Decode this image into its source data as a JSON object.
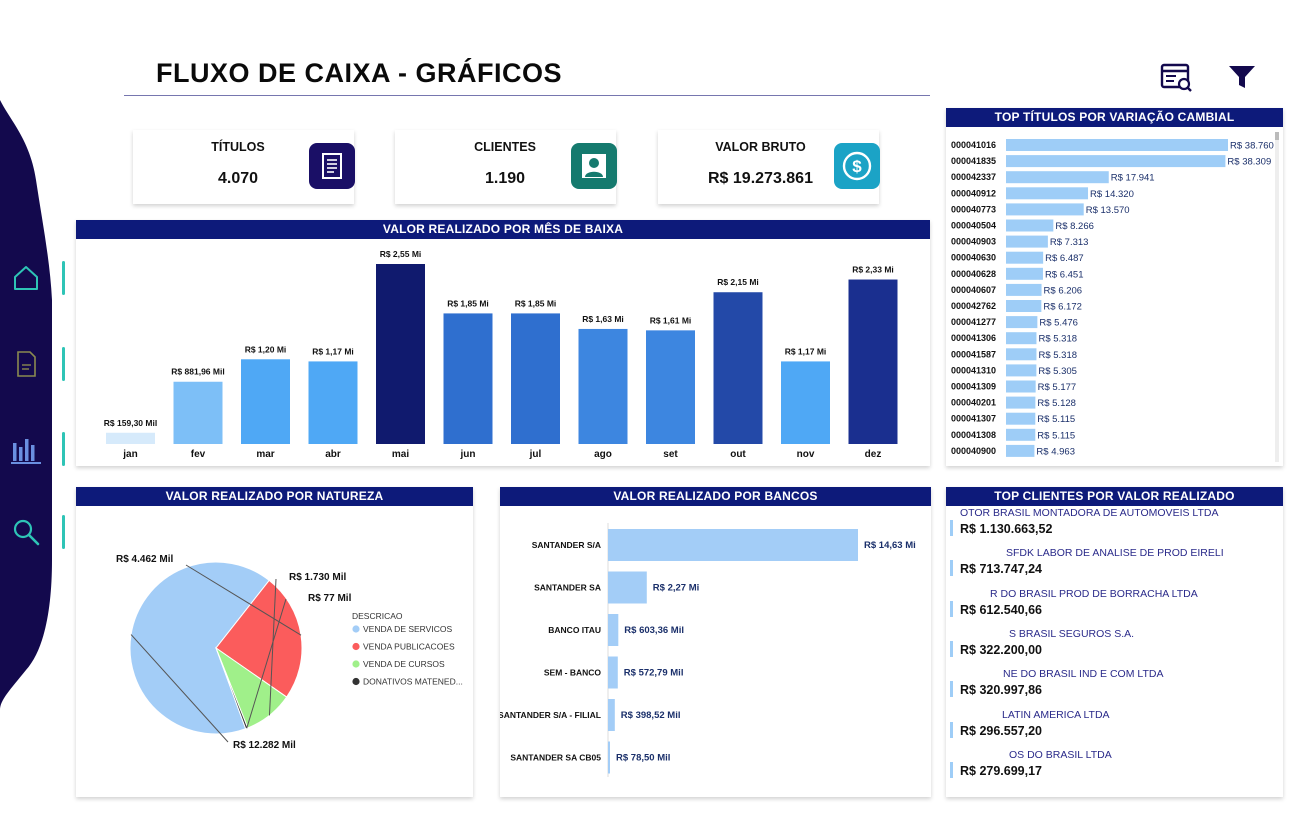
{
  "header": {
    "title": "FLUXO DE CAIXA - GRÁFICOS"
  },
  "kpis": [
    {
      "label": "TÍTULOS",
      "value": "4.070",
      "icon": "document-icon",
      "color": "#1a0f66"
    },
    {
      "label": "CLIENTES",
      "value": "1.190",
      "icon": "user-icon",
      "color": "#157a6e"
    },
    {
      "label": "VALOR BRUTO",
      "value": "R$ 19.273.861",
      "icon": "dollar-icon",
      "color": "#1ba3c6"
    }
  ],
  "colors": {
    "header_bg": "#0d1a7a",
    "sidebar_bg": "#13094d",
    "accent": "#2ec4b6"
  },
  "chart_data": [
    {
      "id": "monthly",
      "type": "bar",
      "title": "VALOR REALIZADO POR MÊS DE BAIXA",
      "categories": [
        "jan",
        "fev",
        "mar",
        "abr",
        "mai",
        "jun",
        "jul",
        "ago",
        "set",
        "out",
        "nov",
        "dez"
      ],
      "values": [
        159.3,
        881.96,
        1200,
        1170,
        2550,
        1850,
        1850,
        1630,
        1610,
        2150,
        1170,
        2330
      ],
      "labels": [
        "R$ 159,30 Mil",
        "R$ 881,96 Mil",
        "R$ 1,20 Mi",
        "R$ 1,17 Mi",
        "R$ 2,55 Mi",
        "R$ 1,85 Mi",
        "R$ 1,85 Mi",
        "R$ 1,63 Mi",
        "R$ 1,61 Mi",
        "R$ 2,15 Mi",
        "R$ 1,17 Mi",
        "R$ 2,33 Mi"
      ],
      "colors": [
        "#d6eafb",
        "#7dbff7",
        "#4fa8f5",
        "#4fa8f5",
        "#101a6e",
        "#2f6fcf",
        "#2f6fcf",
        "#3d86e0",
        "#3d86e0",
        "#2349a8",
        "#4fa8f5",
        "#1a2f8f"
      ],
      "unit": "Mil",
      "ylim": [
        0,
        2550
      ]
    },
    {
      "id": "top_titulos",
      "type": "bar",
      "orientation": "horizontal",
      "title": "TOP TÍTULOS POR VARIAÇÃO CAMBIAL",
      "categories": [
        "000041016",
        "000041835",
        "000042337",
        "000040912",
        "000040773",
        "000040504",
        "000040903",
        "000040630",
        "000040628",
        "000040607",
        "000042762",
        "000041277",
        "000041306",
        "000041587",
        "000041310",
        "000041309",
        "000040201",
        "000041307",
        "000041308",
        "000040900"
      ],
      "values": [
        38760,
        38309,
        17941,
        14320,
        13570,
        8266,
        7313,
        6487,
        6451,
        6206,
        6172,
        5476,
        5318,
        5318,
        5305,
        5177,
        5128,
        5115,
        5115,
        4963
      ],
      "labels": [
        "R$ 38.760",
        "R$ 38.309",
        "R$ 17.941",
        "R$ 14.320",
        "R$ 13.570",
        "R$ 8.266",
        "R$ 7.313",
        "R$ 6.487",
        "R$ 6.451",
        "R$ 6.206",
        "R$ 6.172",
        "R$ 5.476",
        "R$ 5.318",
        "R$ 5.318",
        "R$ 5.305",
        "R$ 5.177",
        "R$ 5.128",
        "R$ 5.115",
        "R$ 5.115",
        "R$ 4.963"
      ],
      "color": "#9ecdf7"
    },
    {
      "id": "natureza",
      "type": "pie",
      "title": "VALOR REALIZADO POR NATUREZA",
      "legend_title": "DESCRICAO",
      "slices": [
        {
          "name": "VENDA DE SERVICOS",
          "value": 12282,
          "label": "R$ 12.282 Mil",
          "color": "#a3cdf7"
        },
        {
          "name": "VENDA PUBLICACOES",
          "value": 4462,
          "label": "R$ 4.462 Mil",
          "color": "#fb5c5c"
        },
        {
          "name": "VENDA DE CURSOS",
          "value": 1730,
          "label": "R$ 1.730 Mil",
          "color": "#a0f08a"
        },
        {
          "name": "DONATIVOS MATENED...",
          "value": 77,
          "label": "R$ 77 Mil",
          "color": "#333333"
        }
      ]
    },
    {
      "id": "bancos",
      "type": "bar",
      "orientation": "horizontal",
      "title": "VALOR REALIZADO POR BANCOS",
      "categories": [
        "SANTANDER S/A",
        "SANTANDER SA",
        "BANCO ITAU",
        "SEM - BANCO",
        "SANTANDER S/A - FILIAL",
        "SANTANDER SA CB05"
      ],
      "values": [
        14630,
        2270,
        603.36,
        572.79,
        398.52,
        78.5
      ],
      "labels": [
        "R$ 14,63 Mi",
        "R$ 2,27 Mi",
        "R$ 603,36 Mil",
        "R$ 572,79 Mil",
        "R$ 398,52 Mil",
        "R$ 78,50 Mil"
      ],
      "color": "#a3cdf7"
    }
  ],
  "top_clientes": {
    "title": "TOP CLIENTES POR VALOR REALIZADO",
    "items": [
      {
        "name": "OTOR BRASIL MONTADORA DE AUTOMOVEIS LTDA",
        "value": "R$ 1.130.663,52"
      },
      {
        "name": "SFDK LABOR DE ANALISE DE PROD EIRELI",
        "value": "R$ 713.747,24"
      },
      {
        "name": "R DO BRASIL PROD DE BORRACHA LTDA",
        "value": "R$ 612.540,66"
      },
      {
        "name": "S BRASIL SEGUROS S.A.",
        "value": "R$ 322.200,00"
      },
      {
        "name": "NE DO BRASIL IND E COM LTDA",
        "value": "R$ 320.997,86"
      },
      {
        "name": "LATIN AMERICA LTDA",
        "value": "R$ 296.557,20"
      },
      {
        "name": "OS DO BRASIL LTDA",
        "value": "R$ 279.699,17"
      }
    ]
  }
}
